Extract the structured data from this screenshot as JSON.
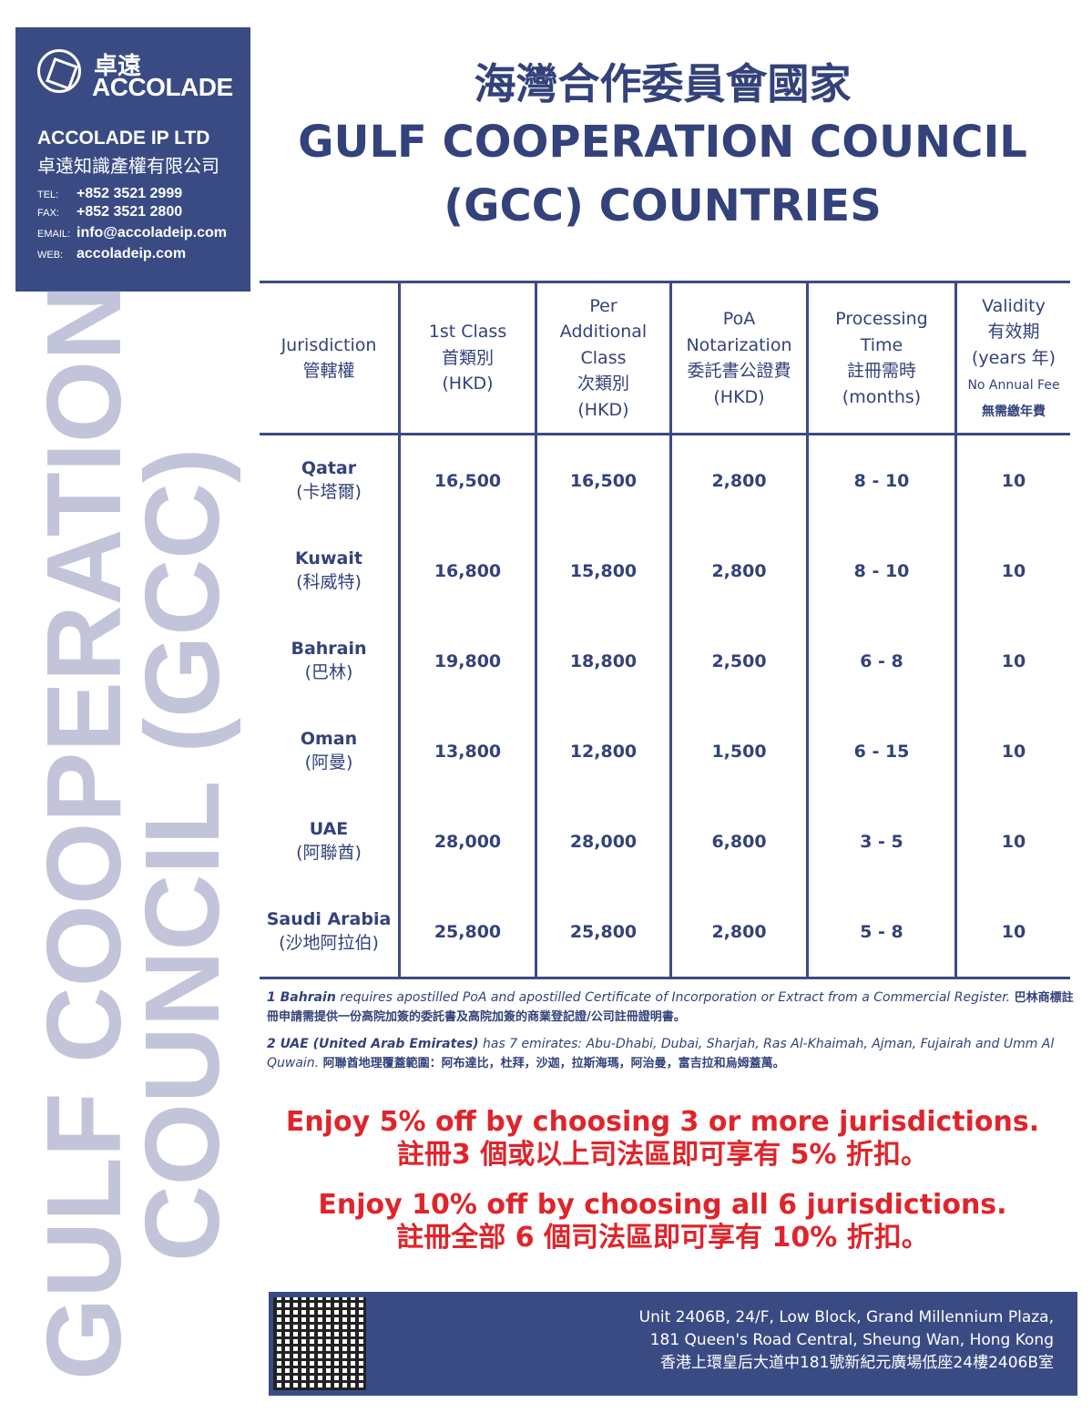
{
  "logo": {
    "cn": "卓遠",
    "en": "ACCOLADE",
    "company": "ACCOLADE IP LTD",
    "company_cn": "卓遠知識產權有限公司",
    "contacts": [
      {
        "label": "TEL:",
        "value": "+852 3521 2999"
      },
      {
        "label": "FAX:",
        "value": "+852 3521 2800"
      },
      {
        "label": "EMAIL:",
        "value": "info@accoladeip.com"
      },
      {
        "label": "WEB:",
        "value": "accoladeip.com"
      }
    ]
  },
  "title": {
    "cn": "海灣合作委員會國家",
    "line1": "GULF COOPERATION COUNCIL",
    "line2": "(GCC) COUNTRIES"
  },
  "watermark": {
    "line1": "GULF COOPERATION",
    "line2": "COUNCIL (GCC)"
  },
  "table": {
    "headers": [
      [
        "Jurisdiction",
        "管轄權"
      ],
      [
        "1st Class",
        "首類別",
        "(HKD)"
      ],
      [
        "Per",
        "Additional",
        "Class",
        "次類別",
        "(HKD)"
      ],
      [
        "PoA",
        "Notarization",
        "委託書公證費",
        "(HKD)"
      ],
      [
        "Processing",
        "Time",
        "註冊需時",
        "(months)"
      ],
      [
        "Validity",
        "有效期",
        "(years 年)"
      ]
    ],
    "validity_note": [
      "No Annual Fee",
      "無需繳年費"
    ],
    "rows": [
      {
        "name": "Qatar",
        "cn": "(卡塔爾)",
        "first": "16,500",
        "add": "16,500",
        "poa": "2,800",
        "time": "8 - 10",
        "validity": "10"
      },
      {
        "name": "Kuwait",
        "cn": "(科威特)",
        "first": "16,800",
        "add": "15,800",
        "poa": "2,800",
        "time": "8 - 10",
        "validity": "10"
      },
      {
        "name": "Bahrain",
        "cn": "(巴林)",
        "first": "19,800",
        "add": "18,800",
        "poa": "2,500",
        "time": "6 - 8",
        "validity": "10"
      },
      {
        "name": "Oman",
        "cn": "(阿曼)",
        "first": "13,800",
        "add": "12,800",
        "poa": "1,500",
        "time": "6 - 15",
        "validity": "10"
      },
      {
        "name": "UAE",
        "cn": "(阿聯酋)",
        "first": "28,000",
        "add": "28,000",
        "poa": "6,800",
        "time": "3 - 5",
        "validity": "10"
      },
      {
        "name": "Saudi Arabia",
        "cn": "(沙地阿拉伯)",
        "first": "25,800",
        "add": "25,800",
        "poa": "2,800",
        "time": "5 - 8",
        "validity": "10"
      }
    ]
  },
  "notes": [
    {
      "lead": "1 Bahrain",
      "text": " requires apostilled PoA and apostilled Certificate of Incorporation or Extract from a Commercial Register. ",
      "cn": "巴林商標註冊申請需提供一份高院加簽的委託書及高院加簽的商業登記證/公司註冊證明書。"
    },
    {
      "lead": "2 UAE (United Arab Emirates)",
      "text": " has 7 emirates: Abu-Dhabi, Dubai, Sharjah, Ras Al-Khaimah, Ajman, Fujairah and Umm Al Quwain. ",
      "cn": "阿聯酋地理覆蓋範圍：阿布達比，杜拜，沙迦，拉斯海瑪，阿治曼，富吉拉和烏姆蓋萬。"
    }
  ],
  "promos": [
    {
      "en": "Enjoy 5% off by choosing 3 or more jurisdictions.",
      "cn": "註冊3 個或以上司法區即可享有 5% 折扣。"
    },
    {
      "en": "Enjoy 10% off by choosing all 6 jurisdictions.",
      "cn": "註冊全部 6 個司法區即可享有 10% 折扣。"
    }
  ],
  "footer": {
    "address": [
      "Unit 2406B, 24/F, Low Block, Grand Millennium Plaza,",
      "181 Queen's Road Central, Sheung Wan, Hong Kong",
      "香港上環皇后大道中181號新紀元廣場低座24樓2406B室"
    ]
  },
  "colors": {
    "navy": "#3a4b84",
    "text": "#33427a",
    "watermark": "#c2c4da",
    "promo": "#e0242b"
  }
}
